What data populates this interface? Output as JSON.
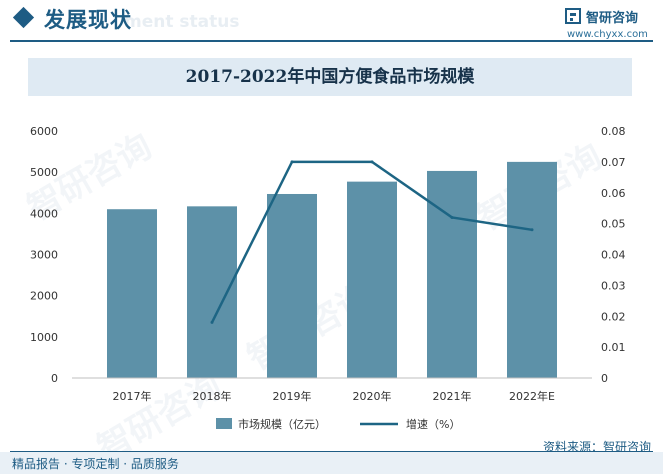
{
  "header": {
    "section_title": "发展现状",
    "section_subtitle": "ment status",
    "brand_name": "智研咨询",
    "brand_url": "www.chyxx.com"
  },
  "watermark_text": "智研咨询",
  "footer": {
    "left": "精品报告 · 专项定制 · 品质服务",
    "source": "资料来源：智研咨询"
  },
  "colors": {
    "primary": "#1e5c84",
    "bar": "#5d91a8",
    "line": "#1d6584",
    "title_band": "#dfeaf3"
  },
  "chart_data": {
    "type": "bar",
    "title": "2017-2022年中国方便食品市场规模",
    "categories": [
      "2017年",
      "2018年",
      "2019年",
      "2020年",
      "2021年",
      "2022年E"
    ],
    "series": [
      {
        "name": "市场规模（亿元）",
        "type": "bar",
        "axis": "left",
        "values": [
          4100,
          4170,
          4470,
          4770,
          5030,
          5250
        ]
      },
      {
        "name": "增速（%）",
        "type": "line",
        "axis": "right",
        "values": [
          null,
          0.018,
          0.07,
          0.07,
          0.052,
          0.048
        ]
      }
    ],
    "y_left": {
      "min": 0,
      "max": 6000,
      "ticks": [
        "0",
        "1000",
        "2000",
        "3000",
        "4000",
        "5000",
        "6000"
      ]
    },
    "y_right": {
      "min": 0,
      "max": 0.08,
      "ticks": [
        "0",
        "0.01",
        "0.02",
        "0.03",
        "0.04",
        "0.05",
        "0.06",
        "0.07",
        "0.08"
      ]
    },
    "grid": false,
    "legend_position": "bottom"
  }
}
